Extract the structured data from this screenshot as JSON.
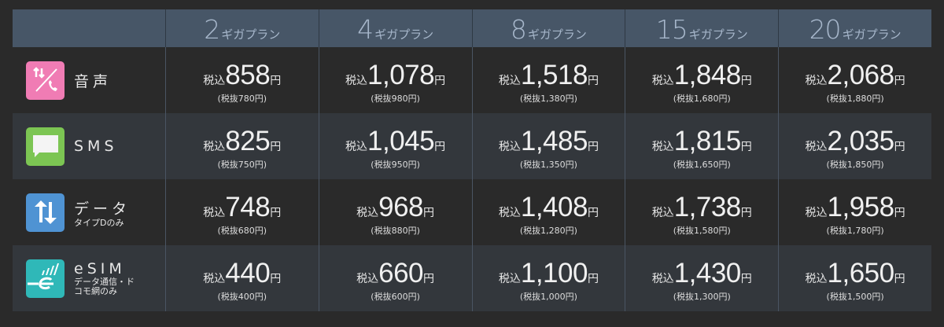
{
  "plans": [
    "2",
    "4",
    "8",
    "15",
    "20"
  ],
  "plan_suffix": "ギガプラン",
  "tax_in_prefix": "税込",
  "yen": "円",
  "rows": [
    {
      "label": "音声",
      "sub": "",
      "icon": "voice-call-icon",
      "color": "#f07cb4",
      "prices": [
        "858",
        "1,078",
        "1,518",
        "1,848",
        "2,068"
      ],
      "excl": [
        "(税抜780円)",
        "(税抜980円)",
        "(税抜1,380円)",
        "(税抜1,680円)",
        "(税抜1,880円)"
      ]
    },
    {
      "label": "SMS",
      "sub": "",
      "icon": "message-bubble-icon",
      "color": "#7cc553",
      "prices": [
        "825",
        "1,045",
        "1,485",
        "1,815",
        "2,035"
      ],
      "excl": [
        "(税抜750円)",
        "(税抜950円)",
        "(税抜1,350円)",
        "(税抜1,650円)",
        "(税抜1,850円)"
      ]
    },
    {
      "label": "データ",
      "sub": "タイプDのみ",
      "icon": "data-arrows-icon",
      "color": "#4f93d3",
      "prices": [
        "748",
        "968",
        "1,408",
        "1,738",
        "1,958"
      ],
      "excl": [
        "(税抜680円)",
        "(税抜880円)",
        "(税抜1,280円)",
        "(税抜1,580円)",
        "(税抜1,780円)"
      ]
    },
    {
      "label": "eSIM",
      "sub": "データ通信・ドコモ網のみ",
      "icon": "esim-icon",
      "color": "#2fb8b8",
      "prices": [
        "440",
        "660",
        "1,100",
        "1,430",
        "1,650"
      ],
      "excl": [
        "(税抜400円)",
        "(税抜600円)",
        "(税抜1,000円)",
        "(税抜1,300円)",
        "(税抜1,500円)"
      ]
    }
  ]
}
